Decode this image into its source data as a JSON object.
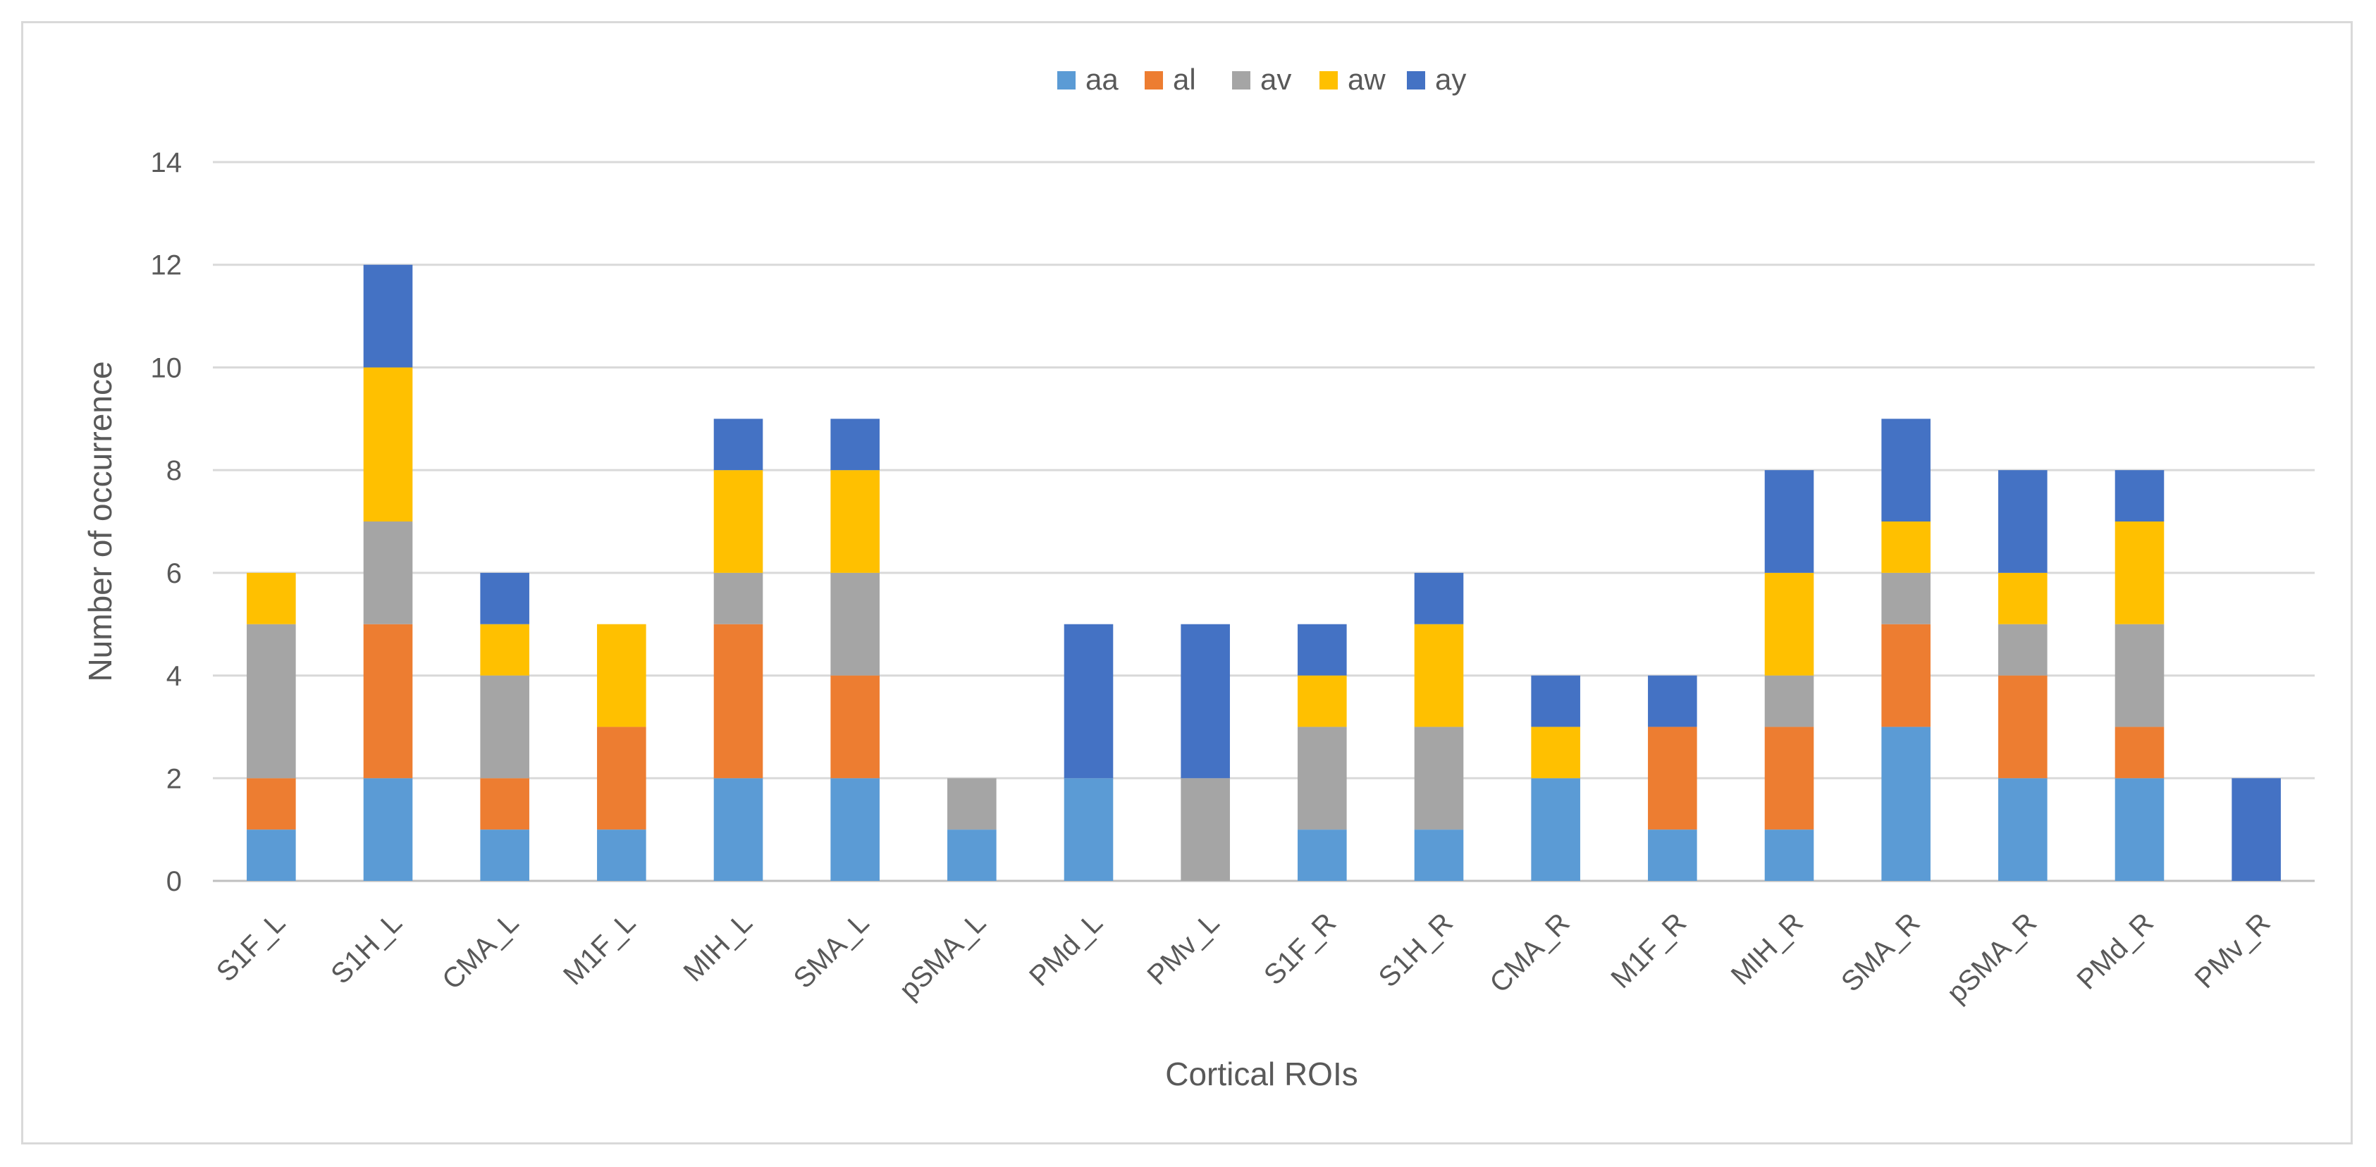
{
  "chart_data": {
    "type": "bar",
    "stacked": true,
    "xlabel": "Cortical ROIs",
    "ylabel": "Number  of occurrence",
    "ylim": [
      0,
      14
    ],
    "yticks": [
      0,
      2,
      4,
      6,
      8,
      10,
      12,
      14
    ],
    "grid": true,
    "legend_position": "top",
    "categories": [
      "S1F_L",
      "S1H_L",
      "CMA_L",
      "M1F_L",
      "MIH_L",
      "SMA_L",
      "pSMA_L",
      "PMd_L",
      "PMv_L",
      "S1F_R",
      "S1H_R",
      "CMA_R",
      "M1F_R",
      "MIH_R",
      "SMA_R",
      "pSMA_R",
      "PMd_R",
      "PMv_R"
    ],
    "series": [
      {
        "name": "aa",
        "color": "#5b9bd5",
        "values": [
          1,
          2,
          1,
          1,
          2,
          2,
          1,
          2,
          0,
          1,
          1,
          2,
          1,
          1,
          3,
          2,
          2,
          0
        ]
      },
      {
        "name": "al",
        "color": "#ed7d31",
        "values": [
          1,
          3,
          1,
          2,
          3,
          2,
          0,
          0,
          0,
          0,
          0,
          0,
          2,
          2,
          2,
          2,
          1,
          0
        ]
      },
      {
        "name": "av",
        "color": "#a5a5a5",
        "values": [
          3,
          2,
          2,
          0,
          1,
          2,
          1,
          0,
          2,
          2,
          2,
          0,
          0,
          1,
          1,
          1,
          2,
          0
        ]
      },
      {
        "name": "aw",
        "color": "#ffc000",
        "values": [
          1,
          3,
          1,
          2,
          2,
          2,
          0,
          0,
          0,
          1,
          2,
          1,
          0,
          2,
          1,
          1,
          2,
          0
        ]
      },
      {
        "name": "ay",
        "color": "#4472c4",
        "values": [
          0,
          2,
          1,
          0,
          1,
          1,
          0,
          3,
          3,
          1,
          1,
          1,
          1,
          2,
          2,
          2,
          1,
          2
        ]
      }
    ]
  }
}
